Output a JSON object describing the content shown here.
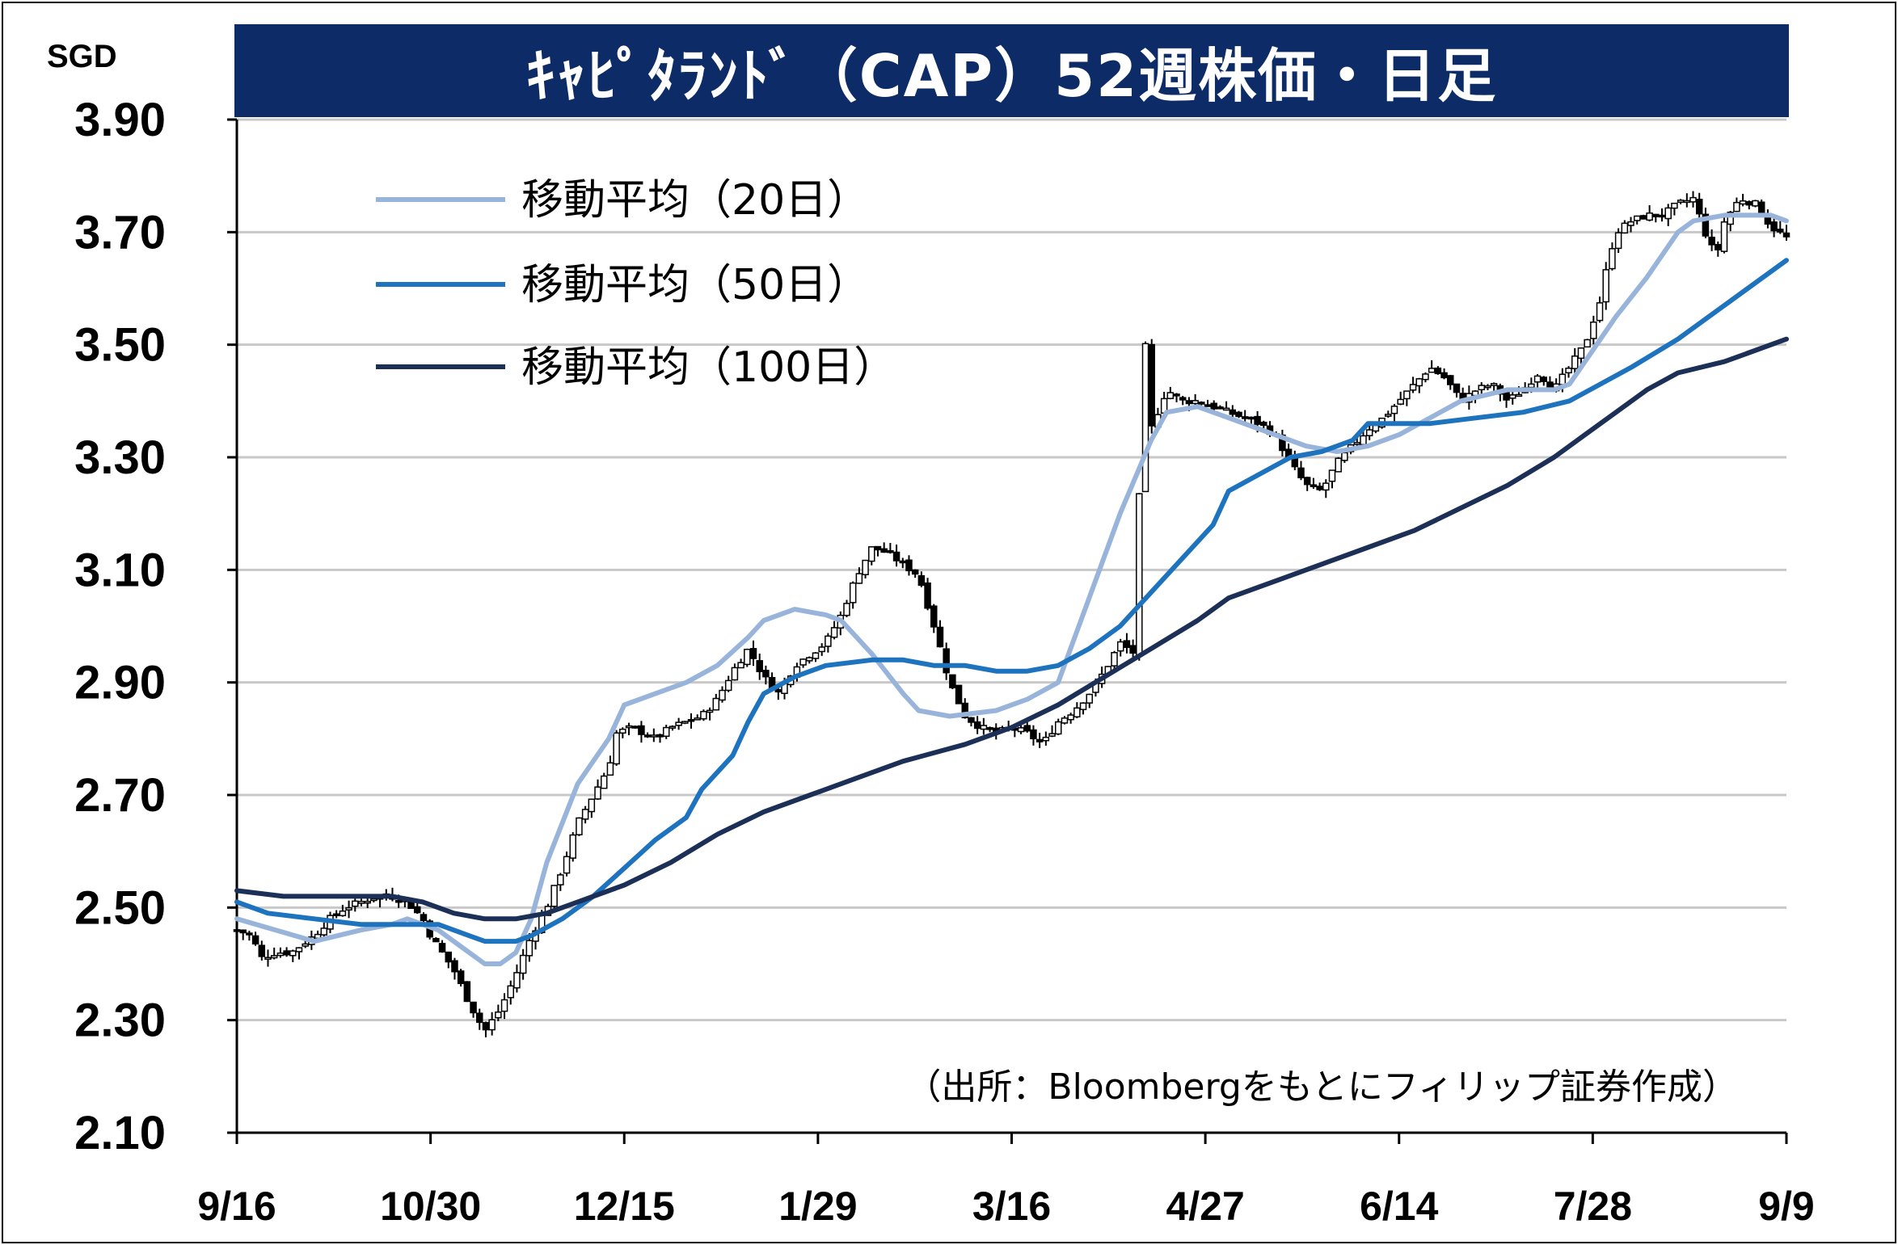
{
  "title": "ｷｬﾋﾟﾀﾗﾝﾄﾞ（CAP）52週株価・日足",
  "unit_label": "SGD",
  "source_note": "（出所：Bloombergをもとにフィリップ証券作成）",
  "colors": {
    "title_bg": "#0d2b67",
    "ma20": "#98b4da",
    "ma50": "#1e73be",
    "ma100": "#1b2f57",
    "candle_up_fill": "#ffffff",
    "candle_down_fill": "#000000",
    "grid": "#c8c8c8"
  },
  "chart_data": {
    "type": "candlestick",
    "title": "ｷｬﾋﾟﾀﾗﾝﾄﾞ（CAP）52週株価・日足",
    "ylabel": "SGD",
    "ylim": [
      2.1,
      3.9
    ],
    "yticks": [
      "3.90",
      "3.70",
      "3.50",
      "3.30",
      "3.10",
      "2.90",
      "2.70",
      "2.50",
      "2.30",
      "2.10"
    ],
    "ytick_values": [
      3.9,
      3.7,
      3.5,
      3.3,
      3.1,
      2.9,
      2.7,
      2.5,
      2.3,
      2.1
    ],
    "xtick_labels": [
      "9/16",
      "10/30",
      "12/15",
      "1/29",
      "3/16",
      "4/27",
      "6/14",
      "7/28",
      "9/9"
    ],
    "grid": true,
    "legend_position": "top-left",
    "series": [
      {
        "name": "移動平均（20日）",
        "kind": "line",
        "color": "#98b4da",
        "points": [
          [
            0,
            2.48
          ],
          [
            0.05,
            2.44
          ],
          [
            0.08,
            2.46
          ],
          [
            0.1,
            2.47
          ],
          [
            0.11,
            2.48
          ],
          [
            0.13,
            2.46
          ],
          [
            0.15,
            2.42
          ],
          [
            0.16,
            2.4
          ],
          [
            0.17,
            2.4
          ],
          [
            0.18,
            2.42
          ],
          [
            0.19,
            2.48
          ],
          [
            0.2,
            2.58
          ],
          [
            0.22,
            2.72
          ],
          [
            0.24,
            2.8
          ],
          [
            0.25,
            2.86
          ],
          [
            0.27,
            2.88
          ],
          [
            0.29,
            2.9
          ],
          [
            0.31,
            2.93
          ],
          [
            0.33,
            2.98
          ],
          [
            0.34,
            3.01
          ],
          [
            0.36,
            3.03
          ],
          [
            0.38,
            3.02
          ],
          [
            0.39,
            3.01
          ],
          [
            0.41,
            2.95
          ],
          [
            0.43,
            2.88
          ],
          [
            0.44,
            2.85
          ],
          [
            0.46,
            2.84
          ],
          [
            0.49,
            2.85
          ],
          [
            0.51,
            2.87
          ],
          [
            0.53,
            2.9
          ],
          [
            0.55,
            3.05
          ],
          [
            0.57,
            3.2
          ],
          [
            0.59,
            3.33
          ],
          [
            0.6,
            3.38
          ],
          [
            0.62,
            3.39
          ],
          [
            0.64,
            3.37
          ],
          [
            0.66,
            3.35
          ],
          [
            0.69,
            3.32
          ],
          [
            0.71,
            3.31
          ],
          [
            0.73,
            3.32
          ],
          [
            0.75,
            3.34
          ],
          [
            0.77,
            3.37
          ],
          [
            0.79,
            3.4
          ],
          [
            0.82,
            3.42
          ],
          [
            0.85,
            3.42
          ],
          [
            0.86,
            3.43
          ],
          [
            0.87,
            3.47
          ],
          [
            0.89,
            3.55
          ],
          [
            0.91,
            3.62
          ],
          [
            0.93,
            3.7
          ],
          [
            0.94,
            3.72
          ],
          [
            0.96,
            3.73
          ],
          [
            0.99,
            3.73
          ],
          [
            1.0,
            3.72
          ]
        ]
      },
      {
        "name": "移動平均（50日）",
        "kind": "line",
        "color": "#1e73be",
        "points": [
          [
            0,
            2.51
          ],
          [
            0.02,
            2.49
          ],
          [
            0.05,
            2.48
          ],
          [
            0.08,
            2.47
          ],
          [
            0.1,
            2.47
          ],
          [
            0.11,
            2.47
          ],
          [
            0.13,
            2.47
          ],
          [
            0.15,
            2.45
          ],
          [
            0.16,
            2.44
          ],
          [
            0.18,
            2.44
          ],
          [
            0.19,
            2.45
          ],
          [
            0.21,
            2.48
          ],
          [
            0.23,
            2.52
          ],
          [
            0.25,
            2.57
          ],
          [
            0.27,
            2.62
          ],
          [
            0.29,
            2.66
          ],
          [
            0.3,
            2.71
          ],
          [
            0.32,
            2.77
          ],
          [
            0.33,
            2.83
          ],
          [
            0.34,
            2.88
          ],
          [
            0.36,
            2.91
          ],
          [
            0.38,
            2.93
          ],
          [
            0.41,
            2.94
          ],
          [
            0.43,
            2.94
          ],
          [
            0.45,
            2.93
          ],
          [
            0.47,
            2.93
          ],
          [
            0.49,
            2.92
          ],
          [
            0.51,
            2.92
          ],
          [
            0.53,
            2.93
          ],
          [
            0.55,
            2.96
          ],
          [
            0.57,
            3.0
          ],
          [
            0.59,
            3.06
          ],
          [
            0.61,
            3.12
          ],
          [
            0.63,
            3.18
          ],
          [
            0.64,
            3.24
          ],
          [
            0.66,
            3.27
          ],
          [
            0.68,
            3.3
          ],
          [
            0.7,
            3.31
          ],
          [
            0.72,
            3.33
          ],
          [
            0.73,
            3.36
          ],
          [
            0.75,
            3.36
          ],
          [
            0.77,
            3.36
          ],
          [
            0.8,
            3.37
          ],
          [
            0.83,
            3.38
          ],
          [
            0.86,
            3.4
          ],
          [
            0.88,
            3.43
          ],
          [
            0.9,
            3.46
          ],
          [
            0.93,
            3.51
          ],
          [
            0.96,
            3.57
          ],
          [
            1.0,
            3.65
          ]
        ]
      },
      {
        "name": "移動平均（100日）",
        "kind": "line",
        "color": "#1b2f57",
        "points": [
          [
            0,
            2.53
          ],
          [
            0.03,
            2.52
          ],
          [
            0.07,
            2.52
          ],
          [
            0.1,
            2.52
          ],
          [
            0.12,
            2.51
          ],
          [
            0.14,
            2.49
          ],
          [
            0.16,
            2.48
          ],
          [
            0.18,
            2.48
          ],
          [
            0.2,
            2.49
          ],
          [
            0.22,
            2.51
          ],
          [
            0.25,
            2.54
          ],
          [
            0.28,
            2.58
          ],
          [
            0.31,
            2.63
          ],
          [
            0.34,
            2.67
          ],
          [
            0.37,
            2.7
          ],
          [
            0.4,
            2.73
          ],
          [
            0.43,
            2.76
          ],
          [
            0.47,
            2.79
          ],
          [
            0.5,
            2.82
          ],
          [
            0.53,
            2.86
          ],
          [
            0.56,
            2.91
          ],
          [
            0.59,
            2.96
          ],
          [
            0.62,
            3.01
          ],
          [
            0.64,
            3.05
          ],
          [
            0.67,
            3.08
          ],
          [
            0.7,
            3.11
          ],
          [
            0.73,
            3.14
          ],
          [
            0.76,
            3.17
          ],
          [
            0.79,
            3.21
          ],
          [
            0.82,
            3.25
          ],
          [
            0.85,
            3.3
          ],
          [
            0.87,
            3.34
          ],
          [
            0.89,
            3.38
          ],
          [
            0.91,
            3.42
          ],
          [
            0.93,
            3.45
          ],
          [
            0.96,
            3.47
          ],
          [
            1.0,
            3.51
          ]
        ]
      }
    ],
    "candles_close_path": [
      [
        0,
        2.46
      ],
      [
        0.01,
        2.45
      ],
      [
        0.015,
        2.41
      ],
      [
        0.025,
        2.42
      ],
      [
        0.035,
        2.42
      ],
      [
        0.05,
        2.45
      ],
      [
        0.06,
        2.48
      ],
      [
        0.07,
        2.5
      ],
      [
        0.08,
        2.51
      ],
      [
        0.09,
        2.52
      ],
      [
        0.1,
        2.52
      ],
      [
        0.11,
        2.51
      ],
      [
        0.12,
        2.48
      ],
      [
        0.125,
        2.45
      ],
      [
        0.13,
        2.43
      ],
      [
        0.14,
        2.39
      ],
      [
        0.15,
        2.33
      ],
      [
        0.16,
        2.28
      ],
      [
        0.17,
        2.32
      ],
      [
        0.18,
        2.38
      ],
      [
        0.19,
        2.45
      ],
      [
        0.2,
        2.5
      ],
      [
        0.21,
        2.57
      ],
      [
        0.22,
        2.65
      ],
      [
        0.23,
        2.7
      ],
      [
        0.24,
        2.75
      ],
      [
        0.245,
        2.81
      ],
      [
        0.255,
        2.82
      ],
      [
        0.27,
        2.8
      ],
      [
        0.28,
        2.82
      ],
      [
        0.29,
        2.83
      ],
      [
        0.3,
        2.84
      ],
      [
        0.31,
        2.87
      ],
      [
        0.32,
        2.92
      ],
      [
        0.33,
        2.96
      ],
      [
        0.34,
        2.91
      ],
      [
        0.35,
        2.88
      ],
      [
        0.36,
        2.93
      ],
      [
        0.37,
        2.95
      ],
      [
        0.38,
        2.97
      ],
      [
        0.39,
        3.02
      ],
      [
        0.4,
        3.09
      ],
      [
        0.41,
        3.14
      ],
      [
        0.42,
        3.13
      ],
      [
        0.43,
        3.11
      ],
      [
        0.44,
        3.09
      ],
      [
        0.45,
        3.0
      ],
      [
        0.46,
        2.9
      ],
      [
        0.47,
        2.84
      ],
      [
        0.48,
        2.82
      ],
      [
        0.49,
        2.81
      ],
      [
        0.5,
        2.82
      ],
      [
        0.51,
        2.81
      ],
      [
        0.52,
        2.79
      ],
      [
        0.53,
        2.83
      ],
      [
        0.54,
        2.85
      ],
      [
        0.55,
        2.88
      ],
      [
        0.56,
        2.92
      ],
      [
        0.57,
        2.97
      ],
      [
        0.58,
        2.95
      ],
      [
        0.585,
        3.55
      ],
      [
        0.59,
        3.35
      ],
      [
        0.6,
        3.42
      ],
      [
        0.61,
        3.4
      ],
      [
        0.62,
        3.4
      ],
      [
        0.63,
        3.39
      ],
      [
        0.64,
        3.38
      ],
      [
        0.65,
        3.37
      ],
      [
        0.66,
        3.36
      ],
      [
        0.67,
        3.34
      ],
      [
        0.68,
        3.29
      ],
      [
        0.69,
        3.25
      ],
      [
        0.7,
        3.24
      ],
      [
        0.71,
        3.29
      ],
      [
        0.72,
        3.32
      ],
      [
        0.73,
        3.35
      ],
      [
        0.74,
        3.37
      ],
      [
        0.75,
        3.4
      ],
      [
        0.76,
        3.43
      ],
      [
        0.77,
        3.46
      ],
      [
        0.78,
        3.44
      ],
      [
        0.79,
        3.4
      ],
      [
        0.8,
        3.42
      ],
      [
        0.81,
        3.43
      ],
      [
        0.82,
        3.4
      ],
      [
        0.83,
        3.42
      ],
      [
        0.84,
        3.45
      ],
      [
        0.85,
        3.42
      ],
      [
        0.86,
        3.46
      ],
      [
        0.87,
        3.5
      ],
      [
        0.88,
        3.58
      ],
      [
        0.885,
        3.65
      ],
      [
        0.89,
        3.7
      ],
      [
        0.9,
        3.72
      ],
      [
        0.91,
        3.73
      ],
      [
        0.92,
        3.73
      ],
      [
        0.93,
        3.75
      ],
      [
        0.94,
        3.76
      ],
      [
        0.95,
        3.68
      ],
      [
        0.955,
        3.66
      ],
      [
        0.96,
        3.72
      ],
      [
        0.97,
        3.76
      ],
      [
        0.98,
        3.75
      ],
      [
        0.99,
        3.71
      ],
      [
        1.0,
        3.69
      ]
    ]
  }
}
